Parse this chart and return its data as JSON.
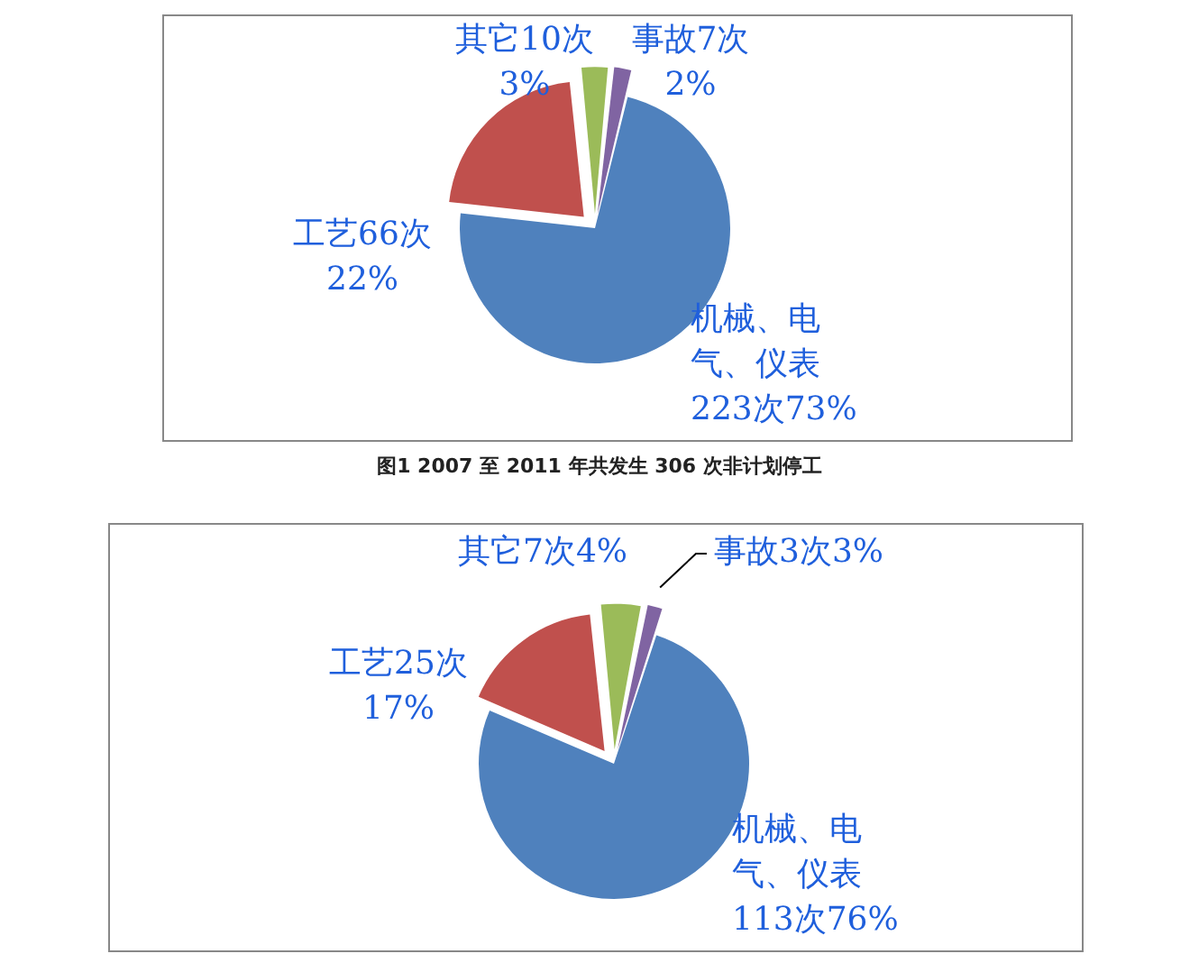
{
  "chart_data": [
    {
      "type": "pie",
      "categories": [
        "其它",
        "事故",
        "机械、电气、仪表",
        "工艺"
      ],
      "values": [
        10,
        7,
        223,
        66
      ],
      "value_labels": [
        "10次3%",
        "7次2%",
        "223次73%",
        "66次22%"
      ],
      "colors": [
        "#9bbb59",
        "#8064a2",
        "#4f81bd",
        "#c0504d"
      ],
      "legend": false,
      "annotations": [
        "图1 2007 至 2011 年共发生 306 次非计划停工"
      ]
    },
    {
      "type": "pie",
      "categories": [
        "其它",
        "事故",
        "机械、电气、仪表",
        "工艺"
      ],
      "values": [
        7,
        3,
        113,
        25
      ],
      "value_labels": [
        "7次4%",
        "3次3%",
        "113次76%",
        "25次17%"
      ],
      "colors": [
        "#9bbb59",
        "#8064a2",
        "#4f81bd",
        "#c0504d"
      ],
      "legend": false
    }
  ]
}
